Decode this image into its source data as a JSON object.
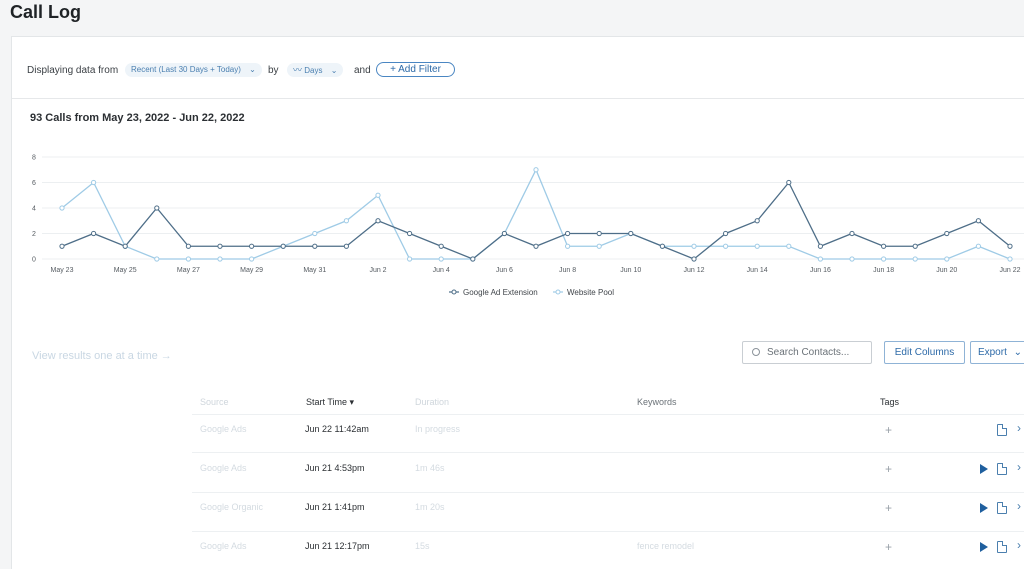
{
  "page": {
    "title": "Call Log"
  },
  "filters": {
    "prefix": "Displaying data from",
    "range_value": "Recent (Last 30 Days + Today)",
    "by_label": "by",
    "interval_value": "Days",
    "and_label": "and",
    "add_filter_label": "+ Add Filter"
  },
  "chart_header": {
    "title": "93 Calls from May 23, 2022 - Jun 22, 2022"
  },
  "chart_data": {
    "type": "line",
    "x": [
      "May 23",
      "May 24",
      "May 25",
      "May 26",
      "May 27",
      "May 28",
      "May 29",
      "May 30",
      "May 31",
      "Jun 1",
      "Jun 2",
      "Jun 3",
      "Jun 4",
      "Jun 5",
      "Jun 6",
      "Jun 7",
      "Jun 8",
      "Jun 9",
      "Jun 10",
      "Jun 11",
      "Jun 12",
      "Jun 13",
      "Jun 14",
      "Jun 15",
      "Jun 16",
      "Jun 17",
      "Jun 18",
      "Jun 19",
      "Jun 20",
      "Jun 21",
      "Jun 22"
    ],
    "xticks": [
      "May 23",
      "May 25",
      "May 27",
      "May 29",
      "May 31",
      "Jun 2",
      "Jun 4",
      "Jun 6",
      "Jun 8",
      "Jun 10",
      "Jun 12",
      "Jun 14",
      "Jun 16",
      "Jun 18",
      "Jun 20",
      "Jun 22"
    ],
    "yticks": [
      "0",
      "2",
      "4",
      "6",
      "8"
    ],
    "ylim": [
      0,
      8
    ],
    "grid": true,
    "legend_position": "bottom",
    "series": [
      {
        "name": "Google Ad Extension",
        "color": "#4e6e88",
        "values": [
          1,
          2,
          1,
          4,
          1,
          1,
          1,
          1,
          1,
          1,
          3,
          2,
          1,
          0,
          2,
          1,
          2,
          2,
          2,
          1,
          0,
          2,
          3,
          6,
          1,
          2,
          1,
          1,
          2,
          3,
          1
        ]
      },
      {
        "name": "Website Pool",
        "color": "#9fcbe6",
        "values": [
          4,
          6,
          1,
          0,
          0,
          0,
          0,
          1,
          2,
          3,
          5,
          0,
          0,
          0,
          2,
          7,
          1,
          1,
          2,
          1,
          1,
          1,
          1,
          1,
          0,
          0,
          0,
          0,
          0,
          1,
          0
        ]
      }
    ]
  },
  "controls": {
    "view_results_link": "View results one at a time →",
    "search_placeholder": "Search Contacts...",
    "edit_columns_label": "Edit Columns",
    "export_label": "Export"
  },
  "table": {
    "headers": {
      "source": "Source",
      "start_time": "Start Time ▾",
      "duration": "Duration",
      "keywords": "Keywords",
      "tags": "Tags"
    },
    "rows": [
      {
        "source": "Google Ads",
        "start_time": "Jun 22 11:42am",
        "duration": "In progress",
        "keywords": "",
        "tag": "+"
      },
      {
        "source": "Google Ads",
        "start_time": "Jun 21 4:53pm",
        "duration": "1m 46s",
        "keywords": "",
        "tag": "+"
      },
      {
        "source": "Google Organic",
        "start_time": "Jun 21 1:41pm",
        "duration": "1m 20s",
        "keywords": "",
        "tag": "+"
      },
      {
        "source": "Google Ads",
        "start_time": "Jun 21 12:17pm",
        "duration": "15s",
        "keywords": "fence remodel",
        "tag": "+"
      }
    ]
  }
}
